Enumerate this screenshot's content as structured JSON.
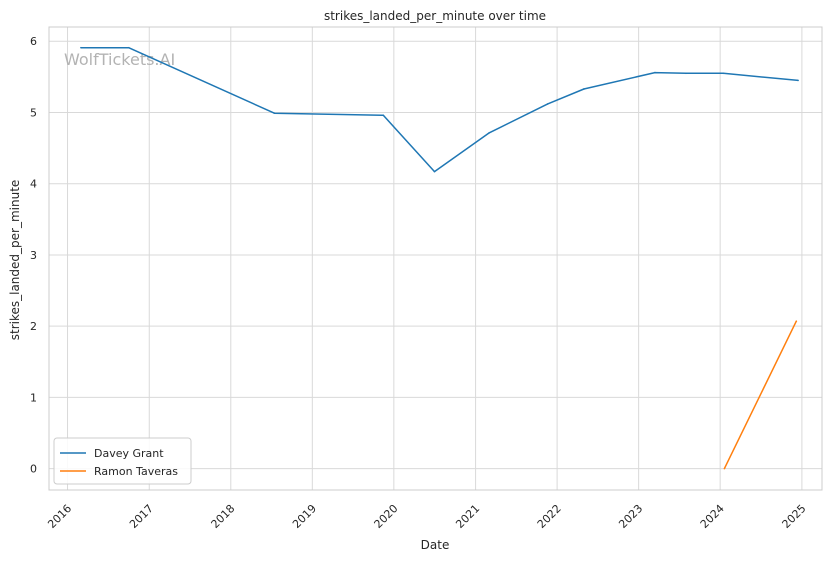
{
  "chart_data": {
    "type": "line",
    "title": "strikes_landed_per_minute over time",
    "xlabel": "Date",
    "ylabel": "strikes_landed_per_minute",
    "x_ticks": [
      "2016",
      "2017",
      "2018",
      "2019",
      "2020",
      "2021",
      "2022",
      "2023",
      "2024",
      "2025"
    ],
    "y_ticks": [
      "0",
      "1",
      "2",
      "3",
      "4",
      "5",
      "6"
    ],
    "xlim": [
      "2015-10-10",
      "2025-04-01"
    ],
    "ylim": [
      -0.3,
      6.2
    ],
    "grid": true,
    "legend_position": "lower-left",
    "watermark": "WolfTickets.AI",
    "series": [
      {
        "name": "Davey Grant",
        "color": "#1f77b4",
        "points": [
          {
            "x": "2016-03-01",
            "y": 5.91
          },
          {
            "x": "2016-10-01",
            "y": 5.91
          },
          {
            "x": "2018-07-15",
            "y": 4.99
          },
          {
            "x": "2019-11-15",
            "y": 4.96
          },
          {
            "x": "2020-07-01",
            "y": 4.17
          },
          {
            "x": "2021-03-01",
            "y": 4.71
          },
          {
            "x": "2021-11-20",
            "y": 5.12
          },
          {
            "x": "2022-05-01",
            "y": 5.33
          },
          {
            "x": "2023-03-15",
            "y": 5.56
          },
          {
            "x": "2023-08-01",
            "y": 5.55
          },
          {
            "x": "2024-01-15",
            "y": 5.55
          },
          {
            "x": "2024-12-15",
            "y": 5.45
          }
        ]
      },
      {
        "name": "Ramon Taveras",
        "color": "#ff7f0e",
        "points": [
          {
            "x": "2024-01-20",
            "y": 0.0
          },
          {
            "x": "2024-12-07",
            "y": 2.07
          }
        ]
      }
    ]
  }
}
